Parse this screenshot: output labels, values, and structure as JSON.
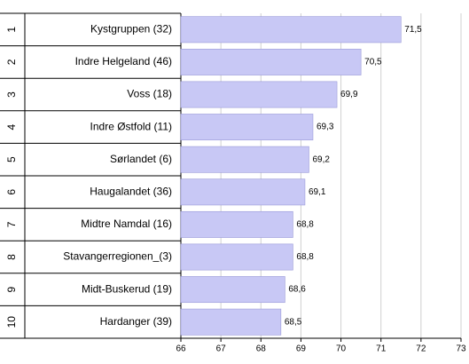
{
  "chart_data": {
    "type": "bar",
    "orientation": "horizontal",
    "ranks": [
      "1",
      "2",
      "3",
      "4",
      "5",
      "6",
      "7",
      "8",
      "9",
      "10"
    ],
    "categories": [
      "Kystgruppen (32)",
      "Indre Helgeland (46)",
      "Voss (18)",
      "Indre Østfold (11)",
      "Sørlandet (6)",
      "Haugalandet (36)",
      "Midtre Namdal (16)",
      "Stavangerregionen_(3)",
      "Midt-Buskerud (19)",
      "Hardanger (39)"
    ],
    "values": [
      71.5,
      70.5,
      69.9,
      69.3,
      69.2,
      69.1,
      68.8,
      68.8,
      68.6,
      68.5
    ],
    "value_labels": [
      "71,5",
      "70,5",
      "69,9",
      "69,3",
      "69,2",
      "69,1",
      "68,8",
      "68,8",
      "68,6",
      "68,5"
    ],
    "color": "#c8c8f5",
    "xlim": [
      66,
      73
    ],
    "xticks": [
      66,
      67,
      68,
      69,
      70,
      71,
      72,
      73
    ],
    "grid": true
  }
}
